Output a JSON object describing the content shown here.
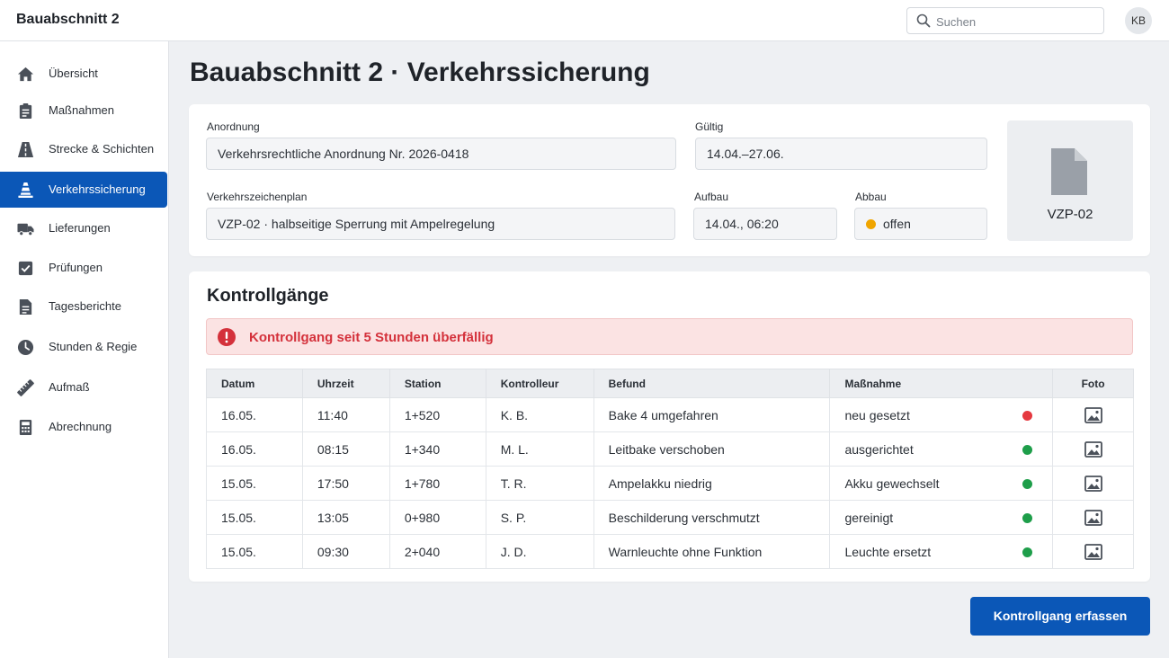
{
  "app": {
    "title": "Bauabschnitt 2"
  },
  "topbar": {
    "search_placeholder": "Suchen",
    "avatar_initials": "KB"
  },
  "sidebar": {
    "items": [
      {
        "label": "Übersicht",
        "icon": "home-icon",
        "active": false
      },
      {
        "label": "Maßnahmen",
        "icon": "clipboard-icon",
        "active": false
      },
      {
        "label": "Strecke & Schichten",
        "icon": "road-icon",
        "active": false
      },
      {
        "label": "Verkehrssicherung",
        "icon": "traffic-cone-icon",
        "active": true
      },
      {
        "label": "Lieferungen",
        "icon": "truck-icon",
        "active": false
      },
      {
        "label": "Prüfungen",
        "icon": "checkbox-icon",
        "active": false
      },
      {
        "label": "Tagesberichte",
        "icon": "document-icon",
        "active": false
      },
      {
        "label": "Stunden & Regie",
        "icon": "clock-icon",
        "active": false
      },
      {
        "label": "Aufmaß",
        "icon": "ruler-icon",
        "active": false
      },
      {
        "label": "Abrechnung",
        "icon": "calculator-icon",
        "active": false
      }
    ]
  },
  "page": {
    "title": "Bauabschnitt 2 · Verkehrssicherung"
  },
  "info": {
    "anordnung_label": "Anordnung",
    "anordnung_value": "Verkehrsrechtliche Anordnung Nr. 2026-0418",
    "gueltig_label": "Gültig",
    "gueltig_value": "14.04.–27.06.",
    "plan_label": "Verkehrszeichenplan",
    "plan_value": "VZP-02 · halbseitige Sperrung mit Ampelregelung",
    "aufbau_label": "Aufbau",
    "aufbau_value": "14.04., 06:20",
    "abbau_label": "Abbau",
    "abbau_value": "offen",
    "abbau_status_color": "#f0a500",
    "document_label": "VZP-02"
  },
  "kontroll": {
    "title": "Kontrollgänge",
    "alert_text": "Kontrollgang seit 5 Stunden überfällig",
    "columns": [
      "Datum",
      "Uhrzeit",
      "Station",
      "Kontrolleur",
      "Befund",
      "Maßnahme",
      "Foto"
    ],
    "rows": [
      {
        "datum": "16.05.",
        "uhrzeit": "11:40",
        "station": "1+520",
        "kontrolleur": "K. B.",
        "befund": "Bake 4 umgefahren",
        "massnahme": "neu gesetzt",
        "status_color": "#e5393f"
      },
      {
        "datum": "16.05.",
        "uhrzeit": "08:15",
        "station": "1+340",
        "kontrolleur": "M. L.",
        "befund": "Leitbake verschoben",
        "massnahme": "ausgerichtet",
        "status_color": "#1e9e4a"
      },
      {
        "datum": "15.05.",
        "uhrzeit": "17:50",
        "station": "1+780",
        "kontrolleur": "T. R.",
        "befund": "Ampelakku niedrig",
        "massnahme": "Akku gewechselt",
        "status_color": "#1e9e4a"
      },
      {
        "datum": "15.05.",
        "uhrzeit": "13:05",
        "station": "0+980",
        "kontrolleur": "S. P.",
        "befund": "Beschilderung verschmutzt",
        "massnahme": "gereinigt",
        "status_color": "#1e9e4a"
      },
      {
        "datum": "15.05.",
        "uhrzeit": "09:30",
        "station": "2+040",
        "kontrolleur": "J. D.",
        "befund": "Warnleuchte ohne Funktion",
        "massnahme": "Leuchte ersetzt",
        "status_color": "#1e9e4a"
      }
    ],
    "action_label": "Kontrollgang erfassen"
  },
  "colors": {
    "accent": "#0b57b7",
    "danger": "#d4313b",
    "alert_bg": "#fbe3e3"
  }
}
